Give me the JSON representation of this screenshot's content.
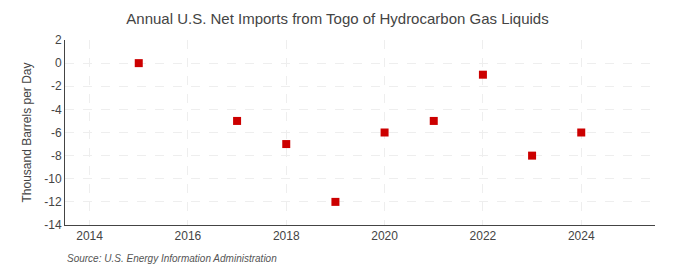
{
  "chart_data": {
    "type": "scatter",
    "title": "Annual U.S. Net Imports from Togo of Hydrocarbon Gas Liquids",
    "y_label": "Thousand Barrels per Day",
    "annotations": [
      "Source: U.S. Energy Information Administration"
    ],
    "x": [
      2015,
      2017,
      2018,
      2019,
      2020,
      2021,
      2022,
      2023,
      2024
    ],
    "values": [
      0.0,
      -5.0,
      -7.0,
      -12.0,
      -6.0,
      -5.0,
      -1.0,
      -8.0,
      -6.0
    ],
    "color": "#cc0000",
    "marker": "square",
    "xlim": [
      2013.5,
      2025.5
    ],
    "ylim": [
      -14,
      2
    ],
    "xticks": [
      2014,
      2016,
      2018,
      2020,
      2022,
      2024
    ],
    "yticks": [
      2,
      0,
      -2,
      -4,
      -6,
      -8,
      -10,
      -12,
      -14
    ],
    "grid": true
  }
}
